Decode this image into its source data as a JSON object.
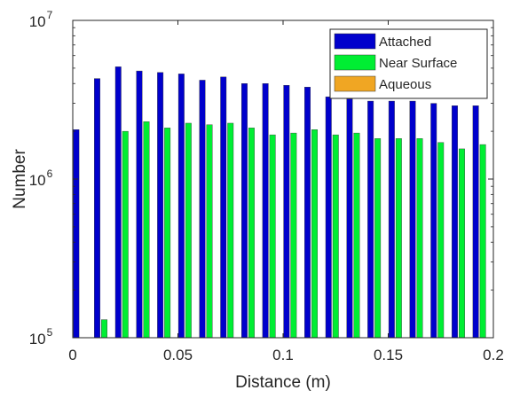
{
  "chart_data": {
    "type": "bar",
    "title": "",
    "xlabel": "Distance (m)",
    "ylabel": "Number",
    "yscale": "log",
    "xlim": [
      0,
      0.2
    ],
    "ylim": [
      100000,
      10000000
    ],
    "grid": false,
    "legend_position": "top-right",
    "x_ticks": [
      0,
      0.05,
      0.1,
      0.15,
      0.2
    ],
    "x_tick_labels": [
      "0",
      "0.05",
      "0.1",
      "0.15",
      "0.2"
    ],
    "y_ticks": [
      100000,
      1000000,
      10000000
    ],
    "y_tick_labels": [
      {
        "base": "10",
        "exp": "5"
      },
      {
        "base": "10",
        "exp": "6"
      },
      {
        "base": "10",
        "exp": "7"
      }
    ],
    "x": [
      0.005,
      0.015,
      0.025,
      0.035,
      0.045,
      0.055,
      0.065,
      0.075,
      0.085,
      0.095,
      0.105,
      0.115,
      0.125,
      0.135,
      0.145,
      0.155,
      0.165,
      0.175,
      0.185,
      0.195
    ],
    "series": [
      {
        "name": "Attached",
        "color": "#0000cc",
        "values": [
          2050000,
          4300000,
          5100000,
          4800000,
          4700000,
          4600000,
          4200000,
          4400000,
          4000000,
          4000000,
          3900000,
          3800000,
          3300000,
          3200000,
          3100000,
          3100000,
          3100000,
          3000000,
          2900000,
          2900000
        ]
      },
      {
        "name": "Near Surface",
        "color": "#00ee33",
        "values": [
          null,
          130000,
          2000000,
          2300000,
          2100000,
          2250000,
          2200000,
          2250000,
          2100000,
          1900000,
          1950000,
          2050000,
          1900000,
          1950000,
          1800000,
          1800000,
          1800000,
          1700000,
          1550000,
          1650000
        ]
      },
      {
        "name": "Aqueous",
        "color": "#f0a623",
        "values": [
          null,
          null,
          null,
          null,
          null,
          null,
          null,
          null,
          null,
          null,
          null,
          null,
          null,
          null,
          null,
          null,
          null,
          null,
          null,
          null
        ]
      }
    ]
  }
}
